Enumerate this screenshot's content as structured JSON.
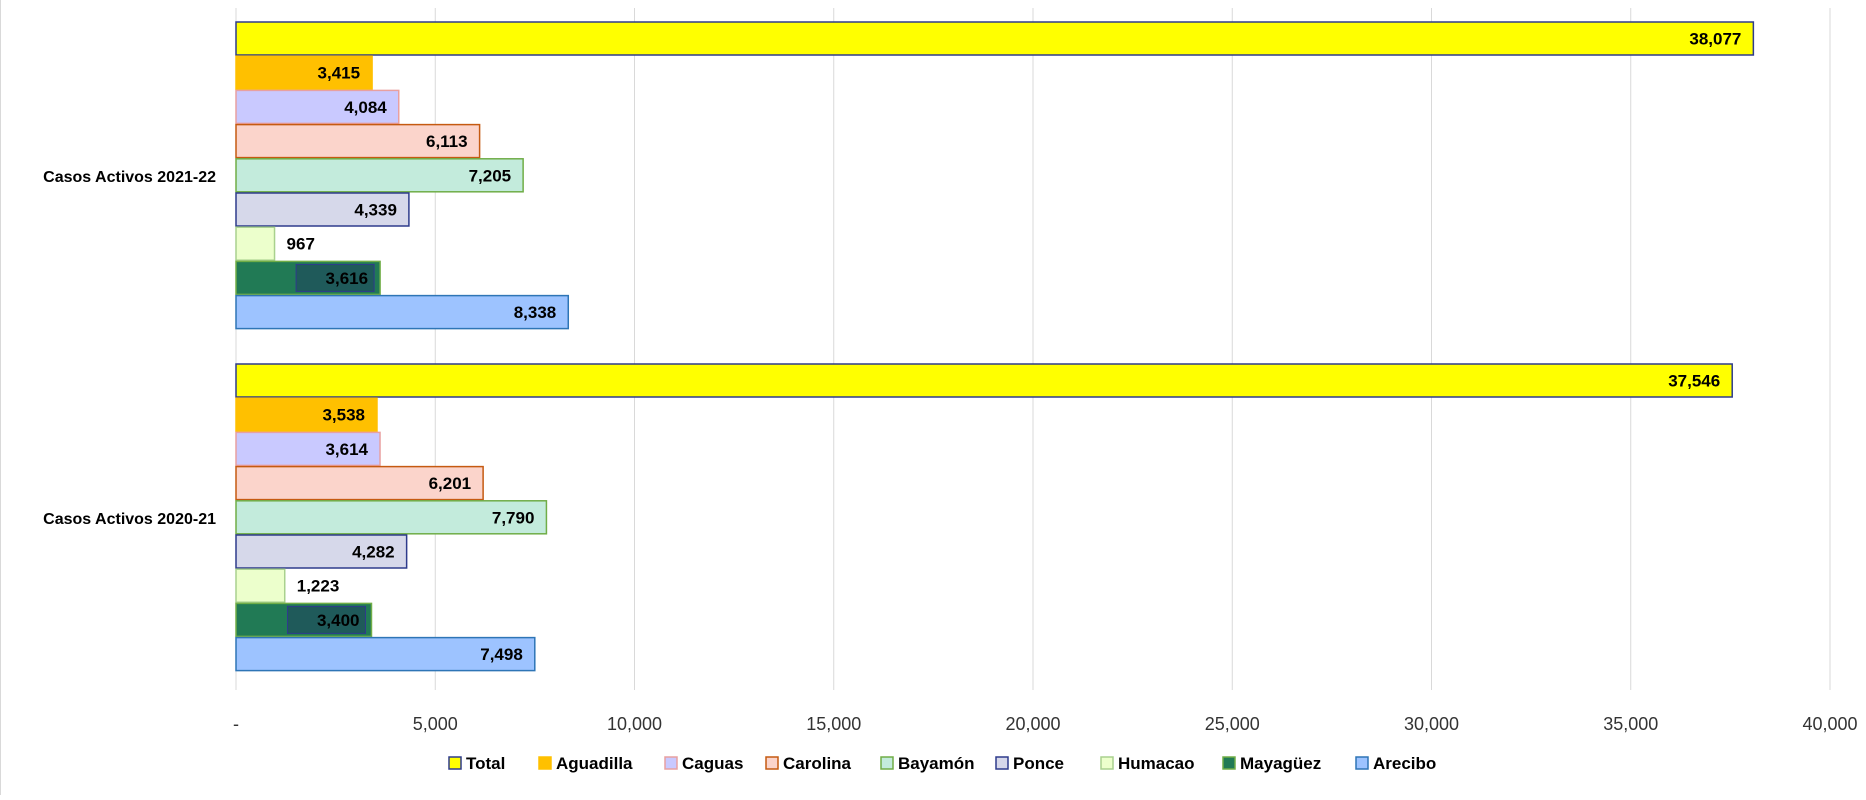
{
  "chart_data": {
    "type": "bar",
    "orientation": "horizontal",
    "title": "",
    "xlabel": "",
    "ylabel": "",
    "xlim": [
      0,
      40000
    ],
    "ticks": [
      0,
      5000,
      10000,
      15000,
      20000,
      25000,
      30000,
      35000,
      40000
    ],
    "tick_labels": [
      "-",
      "5,000",
      "10,000",
      "15,000",
      "20,000",
      "25,000",
      "30,000",
      "35,000",
      "40,000"
    ],
    "grid": true,
    "legend_position": "bottom",
    "categories": [
      "Casos Activos 2021-22",
      "Casos Activos 2020-21"
    ],
    "series": [
      {
        "name": "Total",
        "values": [
          38077,
          37546
        ],
        "labels": [
          "38,077",
          "37,546"
        ],
        "color": "#ffff00",
        "stroke": "#2e3b8c"
      },
      {
        "name": "Aguadilla",
        "values": [
          3415,
          3538
        ],
        "labels": [
          "3,415",
          "3,538"
        ],
        "color": "#ffc000",
        "stroke": "#ffc000"
      },
      {
        "name": "Caguas",
        "values": [
          4084,
          3614
        ],
        "labels": [
          "4,084",
          "3,614"
        ],
        "color": "#c9c9ff",
        "stroke": "#e8a0a0"
      },
      {
        "name": "Carolina",
        "values": [
          6113,
          6201
        ],
        "labels": [
          "6,113",
          "6,201"
        ],
        "color": "#fbd4cb",
        "stroke": "#c55a11"
      },
      {
        "name": "Bayamón",
        "values": [
          7205,
          7790
        ],
        "labels": [
          "7,205",
          "7,790"
        ],
        "color": "#c3ebdc",
        "stroke": "#70ad47"
      },
      {
        "name": "Ponce",
        "values": [
          4339,
          4282
        ],
        "labels": [
          "4,339",
          "4,282"
        ],
        "color": "#d6d8ea",
        "stroke": "#2e3b8c"
      },
      {
        "name": "Humacao",
        "values": [
          967,
          1223
        ],
        "labels": [
          "967",
          "1,223"
        ],
        "color": "#ecffcc",
        "stroke": "#a9d18e"
      },
      {
        "name": "Mayagüez",
        "values": [
          3616,
          3400
        ],
        "labels": [
          "3,616",
          "3,400"
        ],
        "color": "#217a55",
        "stroke": "#70ad47"
      },
      {
        "name": "Arecibo",
        "values": [
          8338,
          7498
        ],
        "labels": [
          "8,338",
          "7,498"
        ],
        "color": "#9dc3ff",
        "stroke": "#2e75b6"
      }
    ]
  }
}
